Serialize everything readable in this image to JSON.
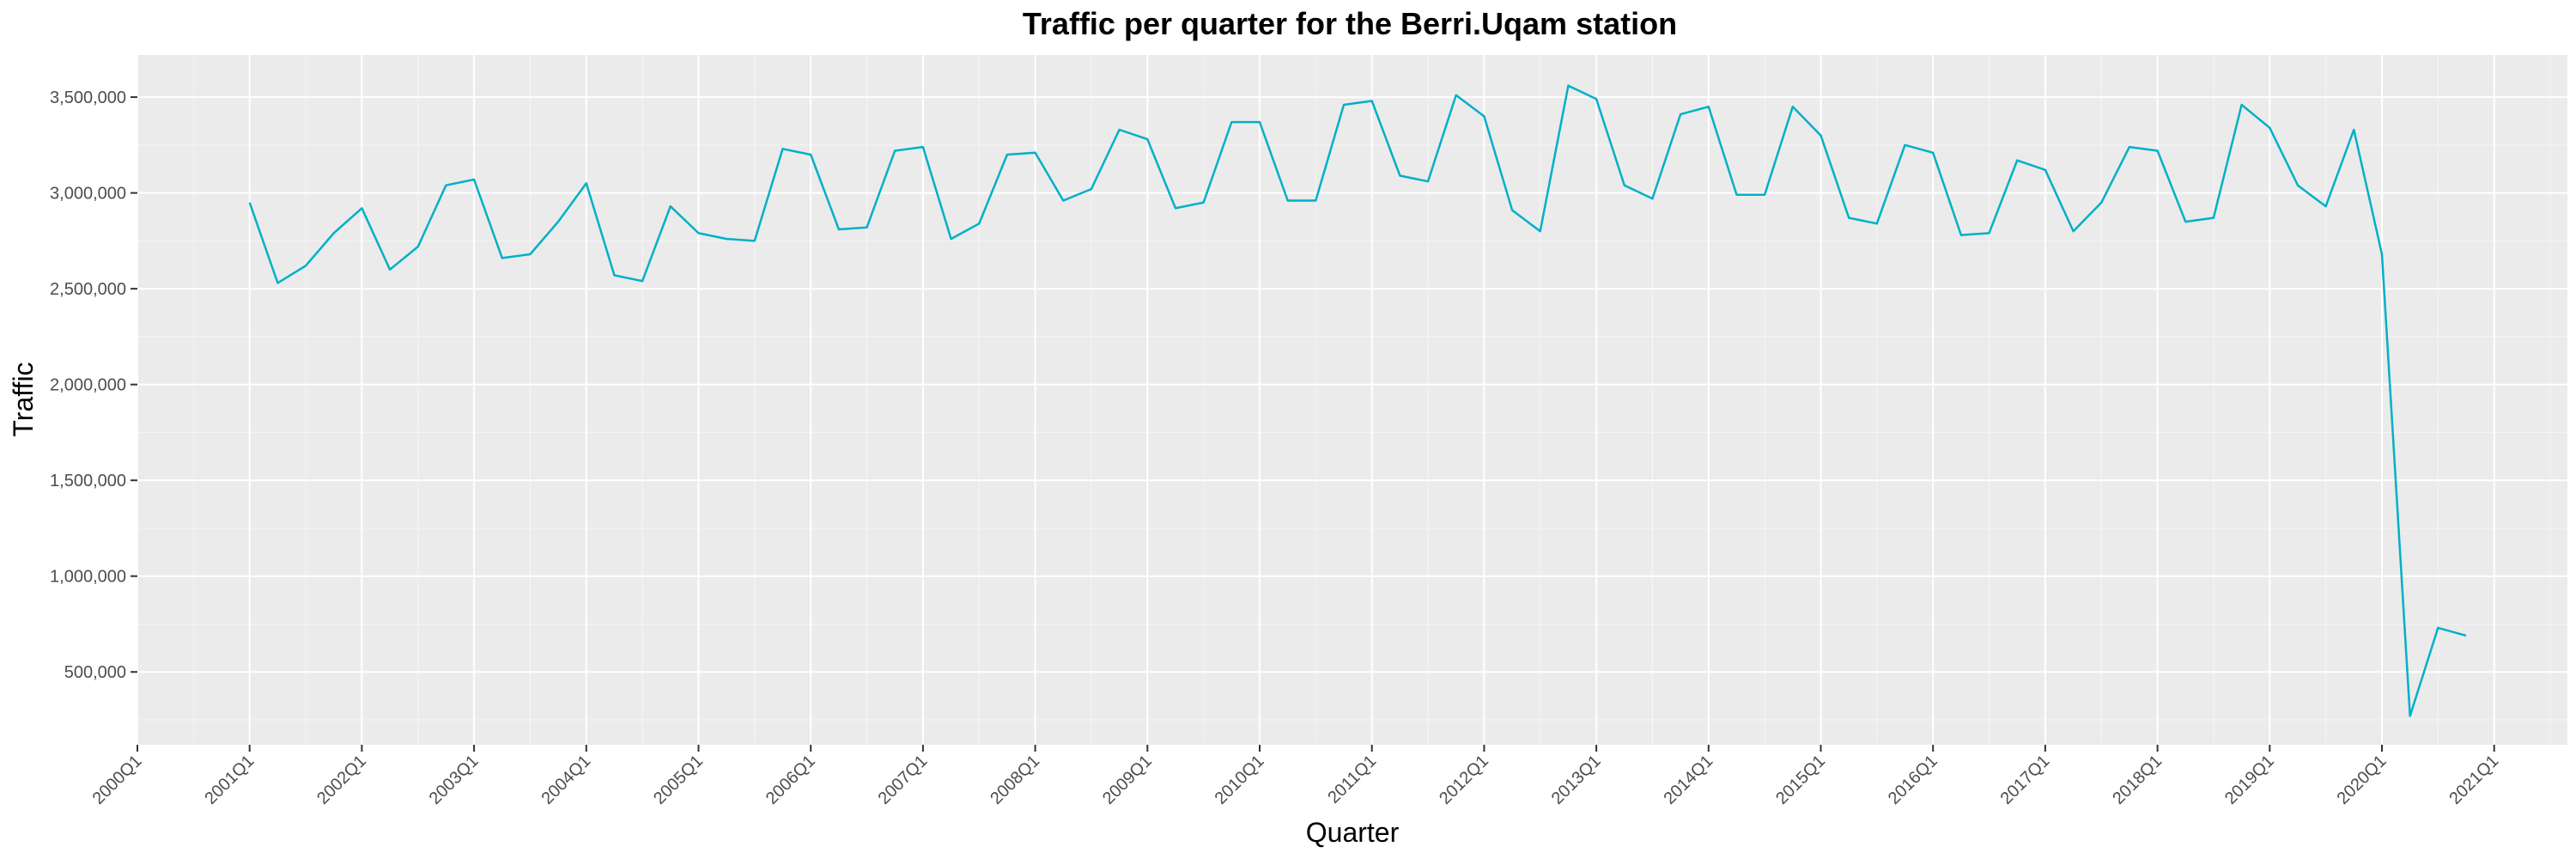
{
  "chart_data": {
    "type": "line",
    "title": "Traffic per quarter for the Berri.Uqam station",
    "xlabel": "Quarter",
    "ylabel": "Traffic",
    "series_color": "#00B0C8",
    "panel_color": "#EBEBEB",
    "grid_color": "#FFFFFF",
    "grid": true,
    "x_ticks": [
      "2000Q1",
      "2001Q1",
      "2002Q1",
      "2003Q1",
      "2004Q1",
      "2005Q1",
      "2006Q1",
      "2007Q1",
      "2008Q1",
      "2009Q1",
      "2010Q1",
      "2011Q1",
      "2012Q1",
      "2013Q1",
      "2014Q1",
      "2015Q1",
      "2016Q1",
      "2017Q1",
      "2018Q1",
      "2019Q1",
      "2020Q1",
      "2021Q1"
    ],
    "y_ticks": [
      500000,
      1000000,
      1500000,
      2000000,
      2500000,
      3000000,
      3500000
    ],
    "y_tick_labels": [
      "500,000",
      "1,000,000",
      "1,500,000",
      "2,000,000",
      "2,500,000",
      "3,000,000",
      "3,500,000"
    ],
    "ylim": [
      120000,
      3720000
    ],
    "x": [
      "2001Q1",
      "2001Q2",
      "2001Q3",
      "2001Q4",
      "2002Q1",
      "2002Q2",
      "2002Q3",
      "2002Q4",
      "2003Q1",
      "2003Q2",
      "2003Q3",
      "2003Q4",
      "2004Q1",
      "2004Q2",
      "2004Q3",
      "2004Q4",
      "2005Q1",
      "2005Q2",
      "2005Q3",
      "2005Q4",
      "2006Q1",
      "2006Q2",
      "2006Q3",
      "2006Q4",
      "2007Q1",
      "2007Q2",
      "2007Q3",
      "2007Q4",
      "2008Q1",
      "2008Q2",
      "2008Q3",
      "2008Q4",
      "2009Q1",
      "2009Q2",
      "2009Q3",
      "2009Q4",
      "2010Q1",
      "2010Q2",
      "2010Q3",
      "2010Q4",
      "2011Q1",
      "2011Q2",
      "2011Q3",
      "2011Q4",
      "2012Q1",
      "2012Q2",
      "2012Q3",
      "2012Q4",
      "2013Q1",
      "2013Q2",
      "2013Q3",
      "2013Q4",
      "2014Q1",
      "2014Q2",
      "2014Q3",
      "2014Q4",
      "2015Q1",
      "2015Q2",
      "2015Q3",
      "2015Q4",
      "2016Q1",
      "2016Q2",
      "2016Q3",
      "2016Q4",
      "2017Q1",
      "2017Q2",
      "2017Q3",
      "2017Q4",
      "2018Q1",
      "2018Q2",
      "2018Q3",
      "2018Q4",
      "2019Q1",
      "2019Q2",
      "2019Q3",
      "2019Q4",
      "2020Q1",
      "2020Q2",
      "2020Q3",
      "2020Q4"
    ],
    "values": [
      2950000,
      2530000,
      2620000,
      2790000,
      2920000,
      2600000,
      2720000,
      3040000,
      3070000,
      2660000,
      2680000,
      2850000,
      3050000,
      2570000,
      2540000,
      2930000,
      2790000,
      2760000,
      2750000,
      3230000,
      3200000,
      2810000,
      2820000,
      3220000,
      3240000,
      2760000,
      2840000,
      3200000,
      3210000,
      2960000,
      3020000,
      3330000,
      3280000,
      2920000,
      2950000,
      3370000,
      3370000,
      2960000,
      2960000,
      3460000,
      3480000,
      3090000,
      3060000,
      3510000,
      3400000,
      2910000,
      2800000,
      3560000,
      3490000,
      3040000,
      2970000,
      3410000,
      3450000,
      2990000,
      2990000,
      3450000,
      3300000,
      2870000,
      2840000,
      3250000,
      3210000,
      2780000,
      2790000,
      3170000,
      3120000,
      2800000,
      2950000,
      3240000,
      3220000,
      2850000,
      2870000,
      3460000,
      3340000,
      3040000,
      2930000,
      3330000,
      2680000,
      270000,
      730000,
      690000
    ]
  }
}
